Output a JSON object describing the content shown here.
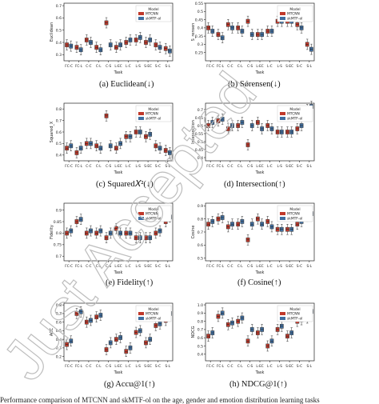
{
  "colors": {
    "mtcnn": "#c0392b",
    "skmtf": "#3f6ea0",
    "mtcnn_light": "#d9534f",
    "skmtf_light": "#5b86b8"
  },
  "tasks": [
    "FC-C",
    "FC-L",
    "C-C",
    "C-L",
    "C-S",
    "L-EC",
    "L-C",
    "L-S",
    "S-EC",
    "S-C",
    "S-L"
  ],
  "legend": {
    "title": "Model",
    "s1": "MTCNN",
    "s2": "skMTF-ol"
  },
  "watermark": "Just Accepted",
  "bottom_caption": "Performance comparison of MTCNN and skMTF-ol on the age, gender and emotion distribution learning tasks",
  "chart_data": [
    {
      "type": "box",
      "id": "euclid",
      "caption": "(a) Euclidean(↓)",
      "ylabel": "Euclidean",
      "xlabel": "Task",
      "ylim": [
        0.25,
        0.72
      ],
      "ticks": [
        0.3,
        0.4,
        0.5,
        0.6,
        0.7
      ],
      "series": [
        {
          "name": "MTCNN",
          "medians": [
            0.38,
            0.36,
            0.42,
            0.36,
            0.56,
            0.36,
            0.4,
            0.42,
            0.4,
            0.38,
            0.35
          ]
        },
        {
          "name": "skMTF-ol",
          "medians": [
            0.37,
            0.34,
            0.4,
            0.34,
            0.38,
            0.38,
            0.42,
            0.44,
            0.42,
            0.36,
            0.33
          ]
        }
      ]
    },
    {
      "type": "box",
      "id": "sorensen",
      "caption": "(b) Sǿrensen(↓)",
      "ylabel": "S_rensen",
      "xlabel": "Task",
      "ylim": [
        0.2,
        0.55
      ],
      "ticks": [
        0.25,
        0.3,
        0.35,
        0.4,
        0.45,
        0.5,
        0.55
      ],
      "series": [
        {
          "name": "MTCNN",
          "medians": [
            0.4,
            0.36,
            0.42,
            0.4,
            0.44,
            0.36,
            0.38,
            0.44,
            0.44,
            0.42,
            0.3
          ]
        },
        {
          "name": "skMTF-ol",
          "medians": [
            0.38,
            0.34,
            0.4,
            0.38,
            0.36,
            0.36,
            0.38,
            0.44,
            0.44,
            0.4,
            0.27
          ]
        }
      ]
    },
    {
      "type": "box",
      "id": "squared",
      "caption": "(c) Squared𝑋²(↓)",
      "ylabel": "Squared_X",
      "xlabel": "Task",
      "ylim": [
        0.35,
        0.85
      ],
      "ticks": [
        0.4,
        0.5,
        0.6,
        0.7,
        0.8
      ],
      "series": [
        {
          "name": "MTCNN",
          "medians": [
            0.46,
            0.42,
            0.5,
            0.48,
            0.74,
            0.46,
            0.56,
            0.6,
            0.56,
            0.48,
            0.44
          ]
        },
        {
          "name": "skMTF-ol",
          "medians": [
            0.48,
            0.46,
            0.5,
            0.46,
            0.48,
            0.5,
            0.56,
            0.6,
            0.58,
            0.46,
            0.42
          ]
        }
      ]
    },
    {
      "type": "box",
      "id": "intersection",
      "caption": "(d) Intersection(↑)",
      "ylabel": "Intersection",
      "xlabel": "Task",
      "ylim": [
        0.38,
        0.74
      ],
      "ticks": [
        0.4,
        0.45,
        0.5,
        0.55,
        0.6,
        0.65,
        0.7
      ],
      "series": [
        {
          "name": "MTCNN",
          "medians": [
            0.6,
            0.63,
            0.58,
            0.6,
            0.48,
            0.62,
            0.6,
            0.56,
            0.56,
            0.58,
            0.7
          ]
        },
        {
          "name": "skMTF-ol",
          "medians": [
            0.62,
            0.64,
            0.6,
            0.62,
            0.6,
            0.58,
            0.58,
            0.56,
            0.56,
            0.6,
            0.72
          ]
        }
      ]
    },
    {
      "type": "box",
      "id": "fidelity",
      "caption": "(e) Fidelity(↑)",
      "ylabel": "Fidelity",
      "xlabel": "Task",
      "ylim": [
        0.68,
        0.93
      ],
      "ticks": [
        0.7,
        0.75,
        0.8,
        0.85,
        0.9
      ],
      "series": [
        {
          "name": "MTCNN",
          "medians": [
            0.8,
            0.85,
            0.8,
            0.8,
            0.78,
            0.82,
            0.8,
            0.78,
            0.78,
            0.8,
            0.85
          ]
        },
        {
          "name": "skMTF-ol",
          "medians": [
            0.81,
            0.86,
            0.81,
            0.81,
            0.8,
            0.8,
            0.8,
            0.78,
            0.78,
            0.81,
            0.87
          ]
        }
      ]
    },
    {
      "type": "box",
      "id": "cosine",
      "caption": "(f) Cosine(↑)",
      "ylabel": "Cosine",
      "xlabel": "Task",
      "ylim": [
        0.48,
        0.92
      ],
      "ticks": [
        0.5,
        0.6,
        0.7,
        0.8,
        0.9
      ],
      "series": [
        {
          "name": "MTCNN",
          "medians": [
            0.76,
            0.8,
            0.74,
            0.76,
            0.64,
            0.8,
            0.78,
            0.72,
            0.72,
            0.76,
            0.82
          ]
        },
        {
          "name": "skMTF-ol",
          "medians": [
            0.78,
            0.81,
            0.76,
            0.78,
            0.76,
            0.76,
            0.74,
            0.72,
            0.72,
            0.78,
            0.84
          ]
        }
      ]
    },
    {
      "type": "box",
      "id": "accu",
      "caption": "(g) Accu@1(↑)",
      "ylabel": "ACC",
      "xlabel": "Task",
      "ylim": [
        0.15,
        0.82
      ],
      "ticks": [
        0.2,
        0.3,
        0.4,
        0.5,
        0.6,
        0.7,
        0.8
      ],
      "series": [
        {
          "name": "MTCNN",
          "medians": [
            0.34,
            0.7,
            0.6,
            0.66,
            0.28,
            0.4,
            0.26,
            0.48,
            0.36,
            0.56,
            0.62
          ]
        },
        {
          "name": "skMTF-ol",
          "medians": [
            0.38,
            0.72,
            0.62,
            0.68,
            0.36,
            0.42,
            0.3,
            0.5,
            0.4,
            0.58,
            0.7
          ]
        }
      ]
    },
    {
      "type": "box",
      "id": "ndcg",
      "caption": "(h) NDCG@1(↑)",
      "ylabel": "NDCG",
      "xlabel": "Task",
      "ylim": [
        0.32,
        1.02
      ],
      "ticks": [
        0.4,
        0.5,
        0.6,
        0.7,
        0.8,
        0.9,
        1.0
      ],
      "series": [
        {
          "name": "MTCNN",
          "medians": [
            0.62,
            0.86,
            0.76,
            0.8,
            0.56,
            0.66,
            0.5,
            0.7,
            0.62,
            0.8,
            0.84
          ]
        },
        {
          "name": "skMTF-ol",
          "medians": [
            0.66,
            0.9,
            0.78,
            0.84,
            0.7,
            0.7,
            0.56,
            0.74,
            0.66,
            0.82,
            0.92
          ]
        }
      ]
    }
  ]
}
